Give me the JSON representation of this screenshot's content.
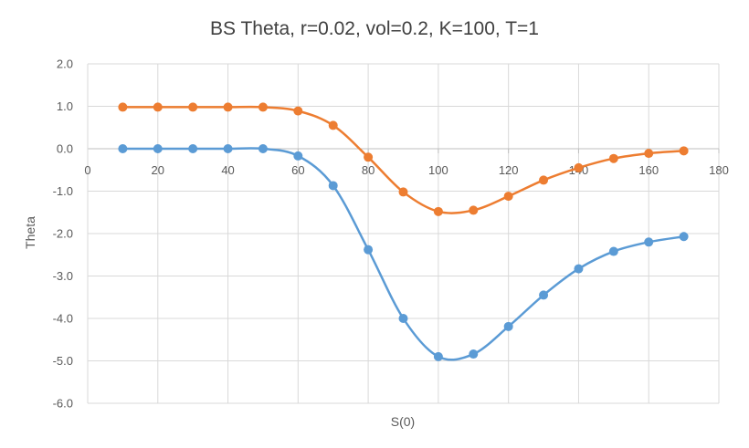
{
  "chart_data": {
    "type": "line",
    "title": "BS Theta, r=0.02, vol=0.2, K=100, T=1",
    "xlabel": "S(0)",
    "ylabel": "Theta",
    "xlim": [
      0,
      180
    ],
    "ylim": [
      -6.0,
      2.0
    ],
    "x_ticks": [
      0,
      20,
      40,
      60,
      80,
      100,
      120,
      140,
      160,
      180
    ],
    "y_ticks": [
      2.0,
      1.0,
      0.0,
      -1.0,
      -2.0,
      -3.0,
      -4.0,
      -5.0,
      -6.0
    ],
    "x_tick_labels": [
      "0",
      "20",
      "40",
      "60",
      "80",
      "100",
      "120",
      "140",
      "160",
      "180"
    ],
    "y_tick_labels": [
      "2.0",
      "1.0",
      "0.0",
      "-1.0",
      "-2.0",
      "-3.0",
      "-4.0",
      "-5.0",
      "-6.0"
    ],
    "grid": true,
    "legend": false,
    "smooth": true,
    "x": [
      10,
      20,
      30,
      40,
      50,
      60,
      70,
      80,
      90,
      100,
      110,
      120,
      130,
      140,
      150,
      160,
      170
    ],
    "series": [
      {
        "color": "#5B9BD5",
        "values": [
          0.0,
          0.0,
          0.0,
          0.0,
          0.0,
          -0.17,
          -0.87,
          -2.38,
          -4.0,
          -4.9,
          -4.84,
          -4.19,
          -3.45,
          -2.83,
          -2.42,
          -2.2,
          -2.07
        ]
      },
      {
        "color": "#ED7D31",
        "values": [
          0.98,
          0.98,
          0.98,
          0.98,
          0.98,
          0.89,
          0.55,
          -0.2,
          -1.02,
          -1.48,
          -1.45,
          -1.12,
          -0.74,
          -0.45,
          -0.23,
          -0.11,
          -0.05
        ]
      }
    ]
  }
}
